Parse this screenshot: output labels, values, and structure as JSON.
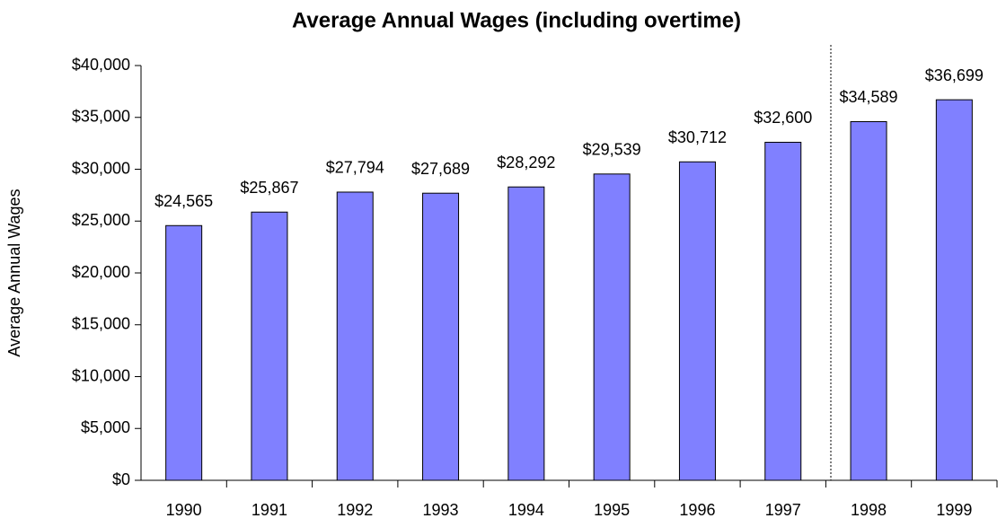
{
  "chart_data": {
    "type": "bar",
    "title": "Average Annual Wages (including overtime)",
    "y_axis_label": "Average Annual Wages",
    "categories": [
      "1990",
      "1991",
      "1992",
      "1993",
      "1994",
      "1995",
      "1996",
      "1997",
      "1998",
      "1999"
    ],
    "values": [
      24565,
      25867,
      27794,
      27689,
      28292,
      29539,
      30712,
      32600,
      34589,
      36699
    ],
    "value_labels": [
      "$24,565",
      "$25,867",
      "$27,794",
      "$27,689",
      "$28,292",
      "$29,539",
      "$30,712",
      "$32,600",
      "$34,589",
      "$36,699"
    ],
    "color": "#8080ff",
    "ylim": [
      0,
      40000
    ],
    "yticks": [
      {
        "value": 0,
        "label": "$0"
      },
      {
        "value": 5000,
        "label": "$5,000"
      },
      {
        "value": 10000,
        "label": "$10,000"
      },
      {
        "value": 15000,
        "label": "$15,000"
      },
      {
        "value": 20000,
        "label": "$20,000"
      },
      {
        "value": 25000,
        "label": "$25,000"
      },
      {
        "value": 30000,
        "label": "$30,000"
      },
      {
        "value": 35000,
        "label": "$35,000"
      },
      {
        "value": 40000,
        "label": "$40,000"
      }
    ],
    "grid": false
  }
}
